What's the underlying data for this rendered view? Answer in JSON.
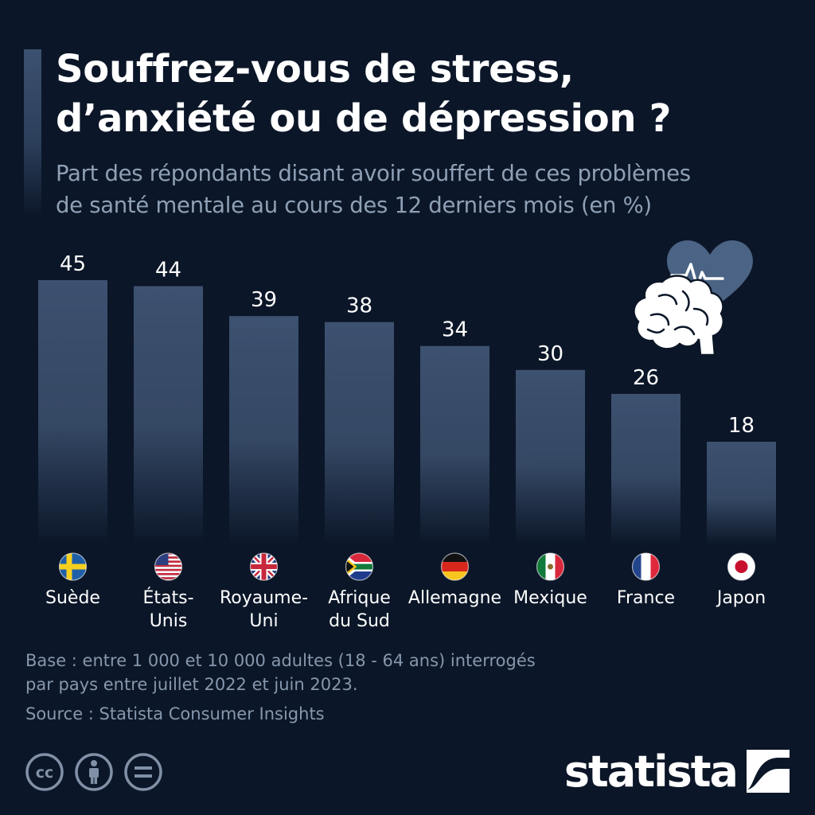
{
  "header": {
    "title_line1": "Souffrez-vous de stress,",
    "title_line2": "d’anxiété ou de dépression ?",
    "subtitle_line1": "Part des répondants disant avoir souffert de ces problèmes",
    "subtitle_line2": "de santé mentale au cours des 12 derniers mois (en %)"
  },
  "chart_data": {
    "type": "bar",
    "title": "Souffrez-vous de stress, d’anxiété ou de dépression ?",
    "subtitle": "Part des répondants disant avoir souffert de ces problèmes de santé mentale au cours des 12 derniers mois (en %)",
    "xlabel": "",
    "ylabel": "",
    "ylim": [
      0,
      45
    ],
    "grid": false,
    "legend": "none",
    "categories": [
      [
        "Suède"
      ],
      [
        "États-",
        "Unis"
      ],
      [
        "Royaume-",
        "Uni"
      ],
      [
        "Afrique",
        "du Sud"
      ],
      [
        "Allemagne"
      ],
      [
        "Mexique"
      ],
      [
        "France"
      ],
      [
        "Japon"
      ]
    ],
    "flags": [
      "sweden-flag-icon",
      "usa-flag-icon",
      "uk-flag-icon",
      "south-africa-flag-icon",
      "germany-flag-icon",
      "mexico-flag-icon",
      "france-flag-icon",
      "japan-flag-icon"
    ],
    "values": [
      45,
      44,
      39,
      38,
      34,
      30,
      26,
      18
    ],
    "colors": {
      "bar": "#3d5170",
      "label": "#ffffff"
    }
  },
  "footer": {
    "base_line1": "Base : entre 1 000 et 10 000 adultes (18 - 64 ans) interrogés",
    "base_line2": "par pays entre juillet 2022 et juin 2023.",
    "source": "Source : Statista Consumer Insights",
    "license_icons": [
      "creative-commons-icon",
      "attribution-icon",
      "no-derivatives-icon"
    ],
    "brand": "statista"
  },
  "illustration": "brain-heart-icon",
  "colors": {
    "background": "#0b1628",
    "accent": "#3d5170",
    "muted_text": "#8fa0b6"
  }
}
